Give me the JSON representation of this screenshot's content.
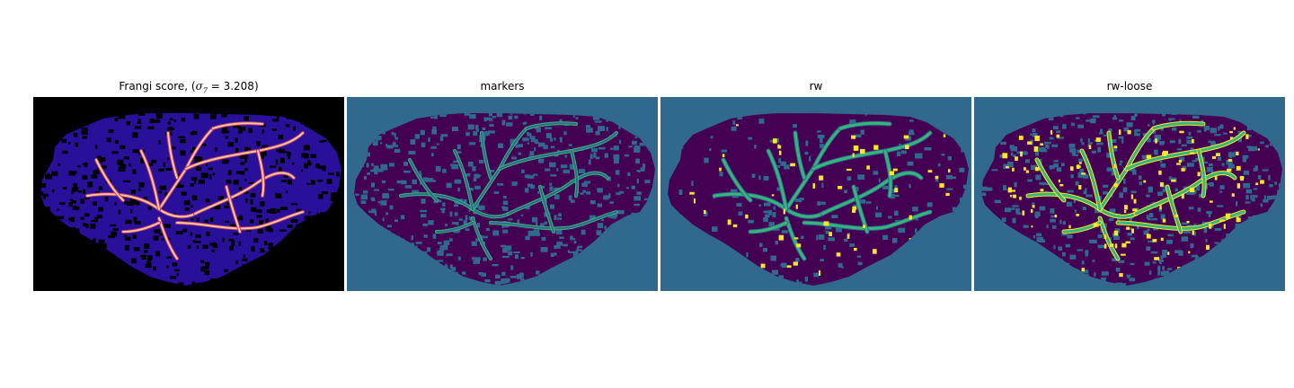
{
  "figure": {
    "panels": [
      {
        "title_text": "Frangi score, (",
        "title_math_sigma": "σ",
        "title_math_sub": "7",
        "title_math_rest": " = 3.208",
        "title_close": ")",
        "background_color": "#000000",
        "colormap": "magma",
        "icon": "frangi-vesselness-image"
      },
      {
        "title": "markers",
        "background_color": "#31688e",
        "colormap": "viridis",
        "icon": "marker-labels-image"
      },
      {
        "title": "rw",
        "background_color": "#31688e",
        "colormap": "viridis",
        "icon": "random-walker-segmentation-image"
      },
      {
        "title": "rw-loose",
        "background_color": "#31688e",
        "colormap": "viridis",
        "icon": "random-walker-loose-segmentation-image"
      }
    ],
    "colors": {
      "purple": "#440154",
      "teal": "#31688e",
      "green": "#35b779",
      "yellow": "#fde725",
      "magma_dark": "#2a0f9a",
      "magma_mid": "#b73779",
      "magma_hot": "#fcc98f"
    }
  }
}
